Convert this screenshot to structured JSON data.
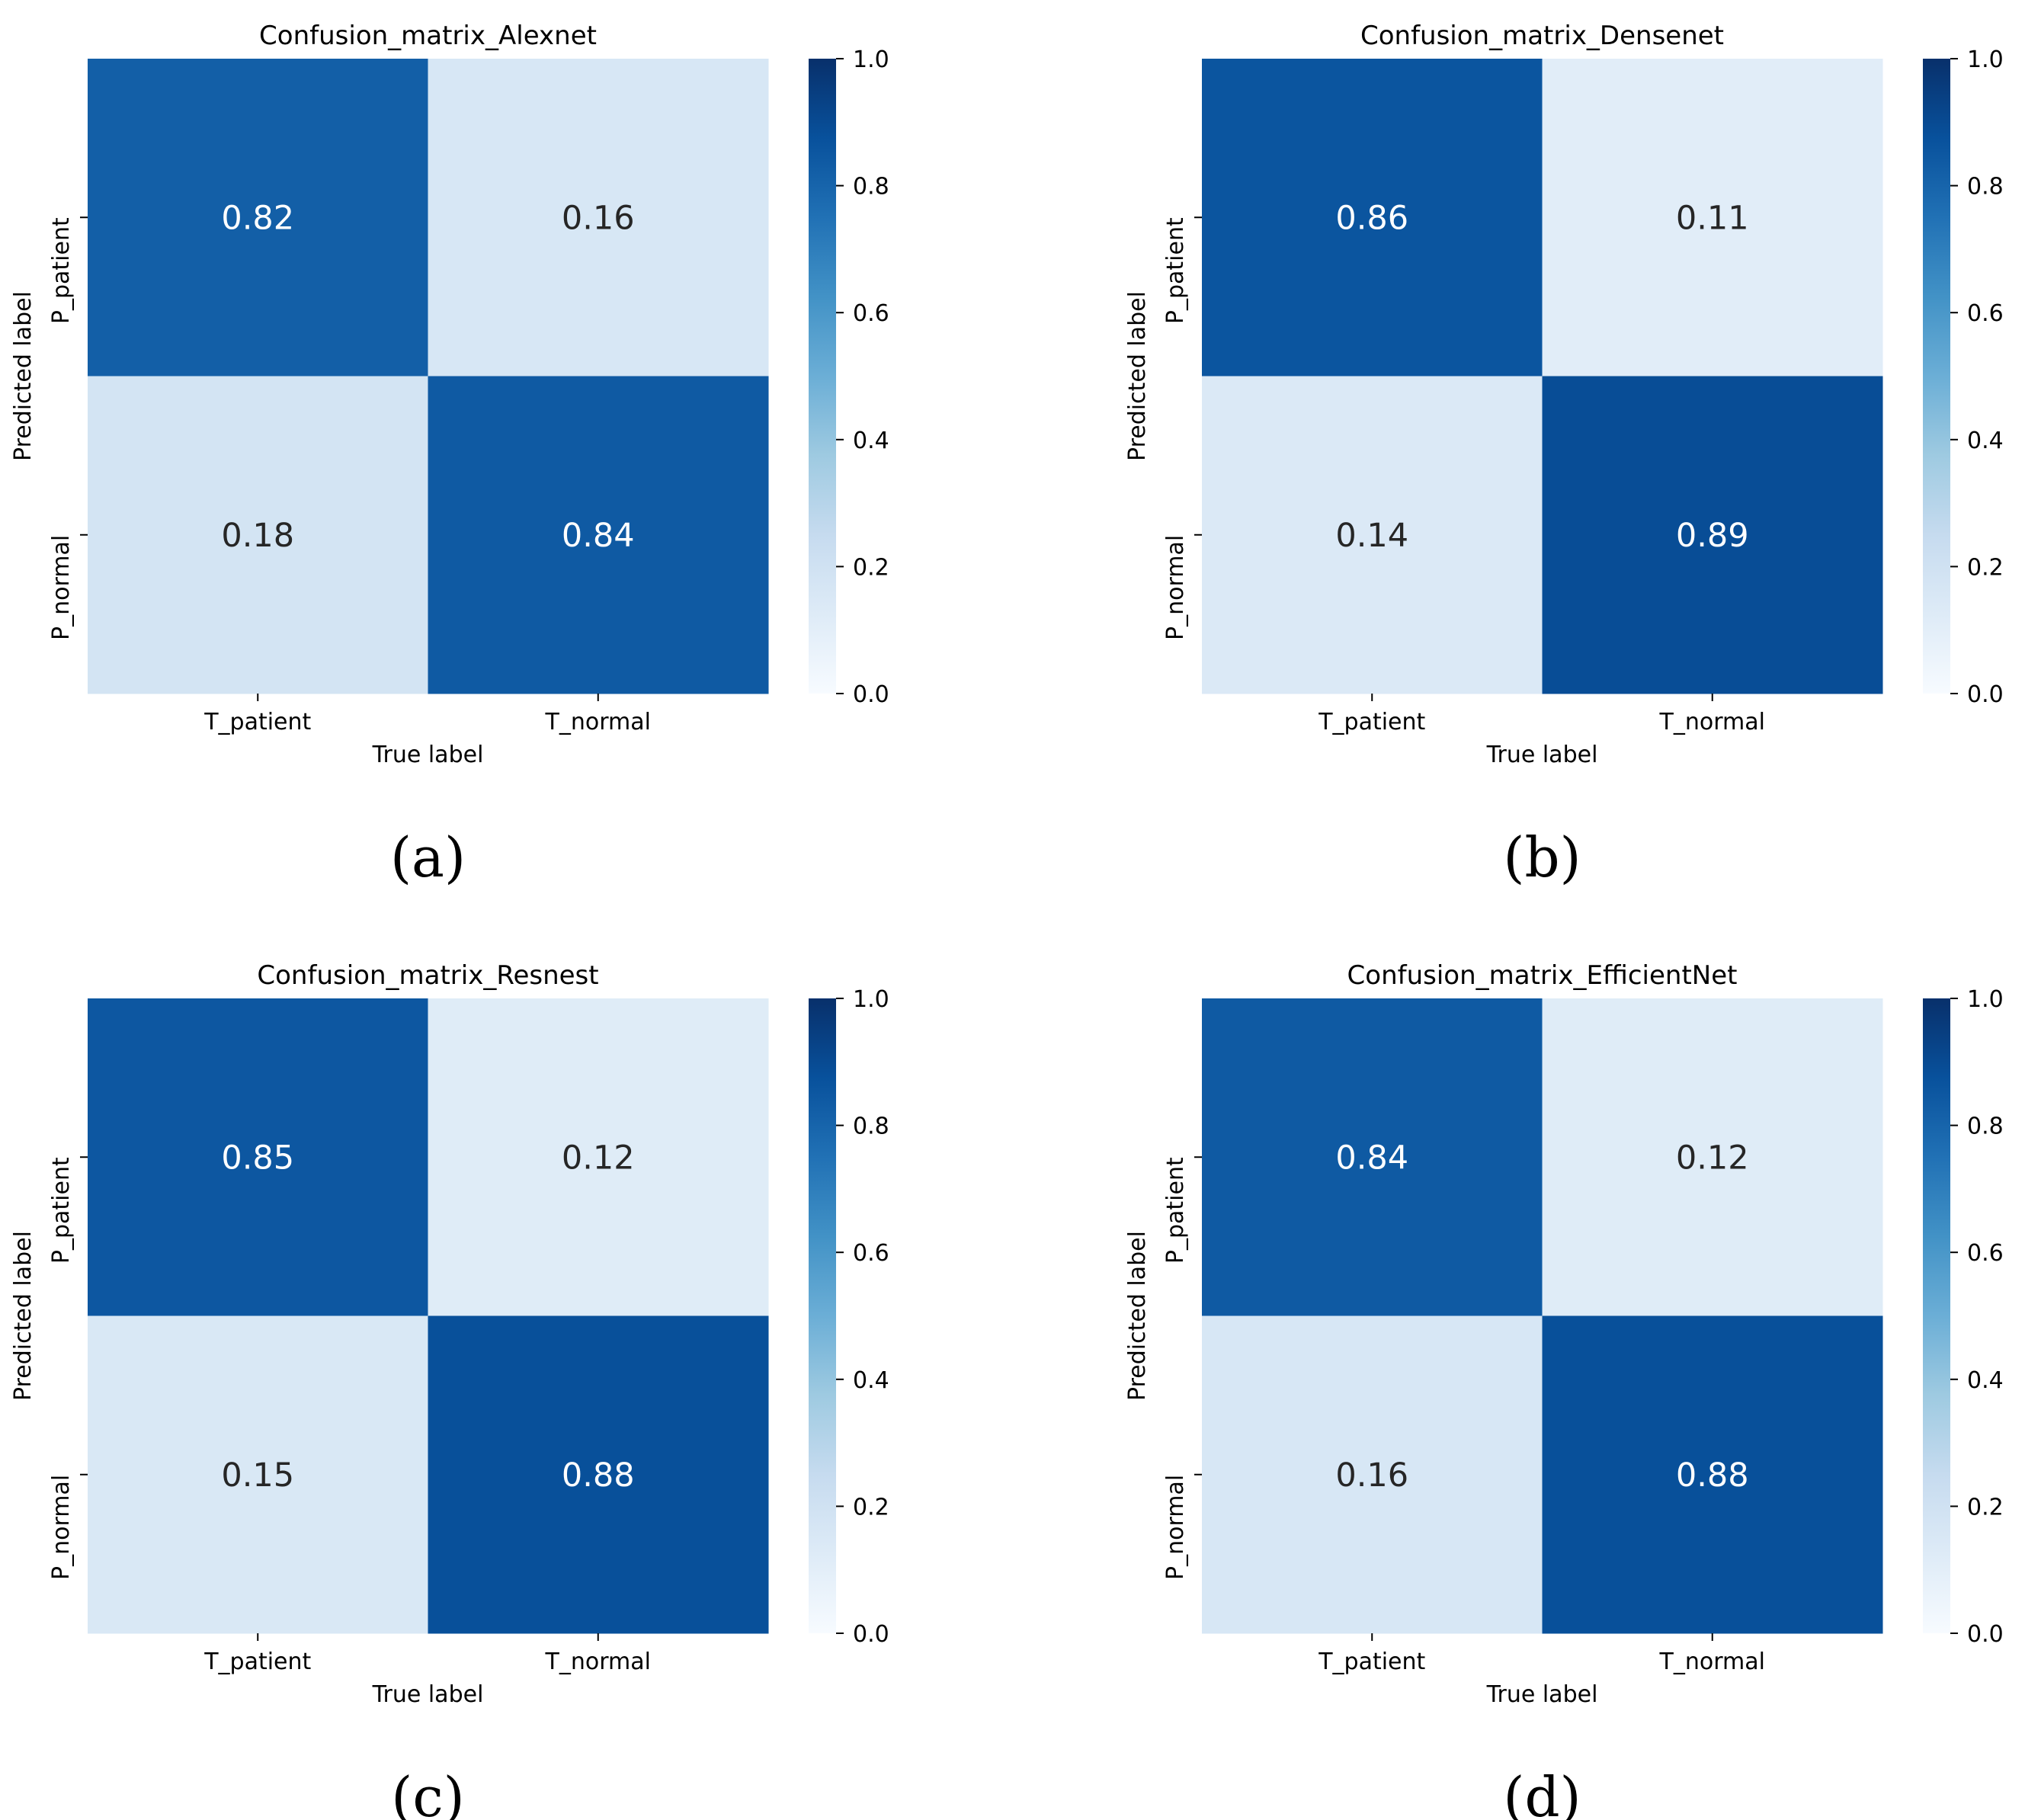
{
  "figure": {
    "captions": [
      "(a)",
      "(b)",
      "(c)",
      "(d)"
    ]
  },
  "chart_data": [
    {
      "type": "heatmap",
      "title": "Confusion_matrix_Alexnet",
      "xlabel": "True label",
      "ylabel": "Predicted label",
      "x_categories": [
        "T_patient",
        "T_normal"
      ],
      "y_categories": [
        "P_patient",
        "P_normal"
      ],
      "values": [
        [
          0.82,
          0.16
        ],
        [
          0.18,
          0.84
        ]
      ],
      "value_labels": [
        [
          "0.82",
          "0.16"
        ],
        [
          "0.18",
          "0.84"
        ]
      ],
      "colorbar": {
        "range": [
          0.0,
          1.0
        ],
        "ticks": [
          "0.0",
          "0.2",
          "0.4",
          "0.6",
          "0.8",
          "1.0"
        ],
        "cmap": "Blues"
      }
    },
    {
      "type": "heatmap",
      "title": "Confusion_matrix_Densenet",
      "xlabel": "True label",
      "ylabel": "Predicted label",
      "x_categories": [
        "T_patient",
        "T_normal"
      ],
      "y_categories": [
        "P_patient",
        "P_normal"
      ],
      "values": [
        [
          0.86,
          0.11
        ],
        [
          0.14,
          0.89
        ]
      ],
      "value_labels": [
        [
          "0.86",
          "0.11"
        ],
        [
          "0.14",
          "0.89"
        ]
      ],
      "colorbar": {
        "range": [
          0.0,
          1.0
        ],
        "ticks": [
          "0.0",
          "0.2",
          "0.4",
          "0.6",
          "0.8",
          "1.0"
        ],
        "cmap": "Blues"
      }
    },
    {
      "type": "heatmap",
      "title": "Confusion_matrix_Resnest",
      "xlabel": "True label",
      "ylabel": "Predicted label",
      "x_categories": [
        "T_patient",
        "T_normal"
      ],
      "y_categories": [
        "P_patient",
        "P_normal"
      ],
      "values": [
        [
          0.85,
          0.12
        ],
        [
          0.15,
          0.88
        ]
      ],
      "value_labels": [
        [
          "0.85",
          "0.12"
        ],
        [
          "0.15",
          "0.88"
        ]
      ],
      "colorbar": {
        "range": [
          0.0,
          1.0
        ],
        "ticks": [
          "0.0",
          "0.2",
          "0.4",
          "0.6",
          "0.8",
          "1.0"
        ],
        "cmap": "Blues"
      }
    },
    {
      "type": "heatmap",
      "title": "Confusion_matrix_EfficientNet",
      "xlabel": "True label",
      "ylabel": "Predicted label",
      "x_categories": [
        "T_patient",
        "T_normal"
      ],
      "y_categories": [
        "P_patient",
        "P_normal"
      ],
      "values": [
        [
          0.84,
          0.12
        ],
        [
          0.16,
          0.88
        ]
      ],
      "value_labels": [
        [
          "0.84",
          "0.12"
        ],
        [
          "0.16",
          "0.88"
        ]
      ],
      "colorbar": {
        "range": [
          0.0,
          1.0
        ],
        "ticks": [
          "0.0",
          "0.2",
          "0.4",
          "0.6",
          "0.8",
          "1.0"
        ],
        "cmap": "Blues"
      }
    }
  ]
}
